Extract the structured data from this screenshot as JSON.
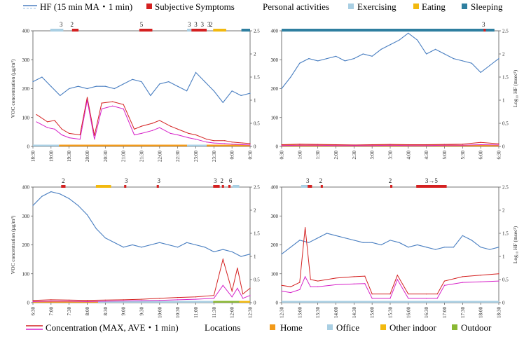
{
  "legend_top": {
    "hf_label": "HF (15 min MA・1 min)",
    "symptoms_label": "Subjective Symptoms",
    "activities_title": "Personal activities",
    "activities": [
      {
        "label": "Exercising",
        "color": "#a9cfe3"
      },
      {
        "label": "Eating",
        "color": "#f2b90f"
      },
      {
        "label": "Sleeping",
        "color": "#2f7fa0"
      }
    ],
    "hf_color": "#4a7fc1",
    "symptom_color": "#d42020"
  },
  "legend_bottom": {
    "conc_label": "Concentration (MAX, AVE・1 min)",
    "locations_title": "Locations",
    "locations": [
      {
        "label": "Home",
        "color": "#f29a1a"
      },
      {
        "label": "Office",
        "color": "#a9cfe3"
      },
      {
        "label": "Other indoor",
        "color": "#f2b90f"
      },
      {
        "label": "Outdoor",
        "color": "#8ab833"
      }
    ],
    "max_color": "#d42020",
    "ave_color": "#d620c8"
  },
  "chart_data": [
    {
      "type": "line",
      "panel": "top-left",
      "ylabel_left": "VOC concentration (µg/m³)",
      "ylabel_right": "",
      "ylim_left": [
        0,
        400
      ],
      "ylim_right": [
        0,
        2.5
      ],
      "yticks_left": [
        "0",
        "100",
        "200",
        "300",
        "400"
      ],
      "yticks_right": [
        "0",
        "0.5",
        "1",
        "1.5",
        "2",
        "2.5"
      ],
      "xticks": [
        "18:30",
        "19:00",
        "19:30",
        "20:00",
        "20:30",
        "21:00",
        "21:30",
        "22:00",
        "22:30",
        "23:00",
        "23:30",
        "0:00",
        "0:30"
      ],
      "symptom_labels": [
        "3",
        "2",
        "5",
        "3",
        "3",
        "3",
        "3",
        "2"
      ],
      "series": [
        {
          "name": "HF 15 min MA",
          "x": [
            0,
            0.5,
            1,
            1.5,
            2,
            2.5,
            3,
            3.5,
            4,
            4.5,
            5,
            5.5,
            6,
            6.5,
            7,
            7.5,
            8,
            8.5,
            9,
            9.5,
            10,
            10.5,
            11,
            11.5,
            12
          ],
          "values": [
            1.4,
            1.5,
            1.3,
            1.1,
            1.25,
            1.3,
            1.25,
            1.3,
            1.3,
            1.25,
            1.35,
            1.45,
            1.4,
            1.1,
            1.35,
            1.4,
            1.3,
            1.2,
            1.6,
            1.4,
            1.2,
            0.95,
            1.2,
            1.1,
            1.15
          ]
        },
        {
          "name": "VOC MAX",
          "x": [
            0.2,
            0.8,
            1.2,
            1.6,
            2,
            2.6,
            3,
            3.4,
            3.8,
            4.4,
            5,
            5.6,
            6,
            6.6,
            7,
            7.6,
            8,
            8.6,
            9,
            9.6,
            10,
            10.6,
            11,
            11.6,
            12
          ],
          "values": [
            110,
            85,
            90,
            60,
            45,
            40,
            170,
            38,
            150,
            155,
            145,
            60,
            70,
            80,
            90,
            70,
            60,
            45,
            40,
            25,
            20,
            20,
            15,
            12,
            10
          ]
        },
        {
          "name": "VOC AVE",
          "x": [
            0.2,
            0.8,
            1.2,
            1.6,
            2,
            2.6,
            3,
            3.4,
            3.8,
            4.4,
            5,
            5.6,
            6,
            6.6,
            7,
            7.6,
            8,
            8.6,
            9,
            9.6,
            10,
            10.6,
            11,
            11.6,
            12
          ],
          "values": [
            85,
            65,
            60,
            40,
            30,
            25,
            160,
            25,
            130,
            140,
            130,
            40,
            45,
            55,
            65,
            45,
            40,
            30,
            25,
            15,
            12,
            10,
            8,
            6,
            5
          ]
        }
      ]
    },
    {
      "type": "line",
      "panel": "top-right",
      "ylabel_left": "",
      "ylabel_right": "Log₁₀ HF (msec²)",
      "ylim_left": [
        0,
        400
      ],
      "ylim_right": [
        0,
        2.5
      ],
      "yticks_left": [
        "0",
        "100",
        "200",
        "300",
        "400"
      ],
      "yticks_right": [
        "0",
        "0.5",
        "1",
        "1.5",
        "2",
        "2.5"
      ],
      "xticks": [
        "0:30",
        "1:00",
        "1:30",
        "2:00",
        "2:30",
        "3:00",
        "3:30",
        "4:00",
        "4:30",
        "5:00",
        "5:30",
        "6:00",
        "6:30"
      ],
      "symptom_labels": [
        "3"
      ],
      "series": [
        {
          "name": "HF 15 min MA",
          "x": [
            0,
            0.5,
            1,
            1.5,
            2,
            2.5,
            3,
            3.5,
            4,
            4.5,
            5,
            5.5,
            6,
            6.5,
            7,
            7.5,
            8,
            8.5,
            9,
            9.5,
            10,
            10.5,
            11,
            11.5,
            12
          ],
          "values": [
            1.25,
            1.5,
            1.8,
            1.9,
            1.85,
            1.9,
            1.95,
            1.85,
            1.9,
            2.0,
            1.95,
            2.1,
            2.2,
            2.3,
            2.45,
            2.3,
            2.0,
            2.1,
            2.0,
            1.9,
            1.85,
            1.8,
            1.6,
            1.75,
            1.9
          ]
        },
        {
          "name": "VOC MAX",
          "x": [
            0,
            1,
            2,
            3,
            4,
            5,
            6,
            7,
            8,
            9,
            10,
            11,
            12
          ],
          "values": [
            6,
            8,
            7,
            6,
            5,
            6,
            7,
            6,
            6,
            7,
            8,
            14,
            9
          ]
        },
        {
          "name": "VOC AVE",
          "x": [
            0,
            1,
            2,
            3,
            4,
            5,
            6,
            7,
            8,
            9,
            10,
            11,
            12
          ],
          "values": [
            3,
            4,
            4,
            3,
            3,
            3,
            4,
            3,
            3,
            4,
            4,
            6,
            5
          ]
        }
      ]
    },
    {
      "type": "line",
      "panel": "bottom-left",
      "ylabel_left": "VOC concentration (µg/m³)",
      "ylabel_right": "",
      "ylim_left": [
        0,
        400
      ],
      "ylim_right": [
        0,
        2.5
      ],
      "yticks_left": [
        "0",
        "100",
        "200",
        "300",
        "400"
      ],
      "yticks_right": [
        "0",
        "0.5",
        "1",
        "1.5",
        "2",
        "2.5"
      ],
      "xticks": [
        "6:30",
        "7:00",
        "7:30",
        "8:00",
        "8:30",
        "9:00",
        "9:30",
        "10:00",
        "10:30",
        "11:00",
        "11:30",
        "12:00",
        "12:30"
      ],
      "symptom_labels": [
        "2",
        "3",
        "3",
        "3",
        "2",
        "6"
      ],
      "series": [
        {
          "name": "HF 15 min MA",
          "x": [
            0,
            0.5,
            1,
            1.5,
            2,
            2.5,
            3,
            3.5,
            4,
            4.5,
            5,
            5.5,
            6,
            6.5,
            7,
            7.5,
            8,
            8.5,
            9,
            9.5,
            10,
            10.5,
            11,
            11.5,
            12
          ],
          "values": [
            2.1,
            2.3,
            2.4,
            2.35,
            2.25,
            2.1,
            1.9,
            1.6,
            1.4,
            1.3,
            1.2,
            1.25,
            1.2,
            1.25,
            1.3,
            1.25,
            1.2,
            1.3,
            1.25,
            1.2,
            1.1,
            1.15,
            1.1,
            1.0,
            1.05
          ]
        },
        {
          "name": "VOC MAX",
          "x": [
            0,
            1,
            2,
            3,
            4,
            5,
            6,
            7,
            8,
            9,
            10,
            10.5,
            11,
            11.3,
            11.6,
            12
          ],
          "values": [
            8,
            10,
            9,
            8,
            9,
            10,
            12,
            15,
            18,
            20,
            25,
            150,
            40,
            120,
            30,
            50
          ]
        },
        {
          "name": "VOC AVE",
          "x": [
            0,
            1,
            2,
            3,
            4,
            5,
            6,
            7,
            8,
            9,
            10,
            10.5,
            11,
            11.3,
            11.6,
            12
          ],
          "values": [
            4,
            5,
            5,
            4,
            5,
            6,
            7,
            8,
            10,
            12,
            15,
            60,
            20,
            50,
            15,
            25
          ]
        }
      ]
    },
    {
      "type": "line",
      "panel": "bottom-right",
      "ylabel_left": "",
      "ylabel_right": "Log₁₀ HF (msec²)",
      "ylim_left": [
        0,
        400
      ],
      "ylim_right": [
        0,
        2.5
      ],
      "yticks_left": [
        "0",
        "100",
        "200",
        "300",
        "400"
      ],
      "yticks_right": [
        "0",
        "0.5",
        "1",
        "1.5",
        "2",
        "2.5"
      ],
      "xticks": [
        "12:30",
        "13:00",
        "13:30",
        "14:00",
        "14:30",
        "15:00",
        "15:30",
        "16:00",
        "16:30",
        "17:00",
        "17:30",
        "18:00",
        "18:30"
      ],
      "symptom_labels": [
        "3",
        "2",
        "2",
        "3→5"
      ],
      "series": [
        {
          "name": "HF 15 min MA",
          "x": [
            0,
            0.5,
            1,
            1.5,
            2,
            2.5,
            3,
            3.5,
            4,
            4.5,
            5,
            5.5,
            6,
            6.5,
            7,
            7.5,
            8,
            8.5,
            9,
            9.5,
            10,
            10.5,
            11,
            11.5,
            12
          ],
          "values": [
            1.05,
            1.2,
            1.35,
            1.3,
            1.4,
            1.5,
            1.45,
            1.4,
            1.35,
            1.3,
            1.3,
            1.25,
            1.35,
            1.3,
            1.2,
            1.25,
            1.2,
            1.15,
            1.2,
            1.2,
            1.45,
            1.35,
            1.2,
            1.15,
            1.2
          ]
        },
        {
          "name": "VOC MAX",
          "x": [
            0,
            0.5,
            1,
            1.3,
            1.6,
            2,
            3,
            4,
            4.6,
            5,
            6,
            6.4,
            7,
            8,
            8.6,
            9,
            10,
            11,
            12
          ],
          "values": [
            60,
            55,
            70,
            260,
            80,
            75,
            85,
            90,
            92,
            30,
            30,
            95,
            30,
            30,
            30,
            75,
            90,
            95,
            100
          ]
        },
        {
          "name": "VOC AVE",
          "x": [
            0,
            0.5,
            1,
            1.3,
            1.6,
            2,
            3,
            4,
            4.6,
            5,
            6,
            6.4,
            7,
            8,
            8.6,
            9,
            10,
            11,
            12
          ],
          "values": [
            40,
            35,
            45,
            90,
            55,
            55,
            62,
            65,
            66,
            15,
            15,
            80,
            15,
            15,
            15,
            60,
            70,
            72,
            75
          ]
        }
      ]
    }
  ]
}
